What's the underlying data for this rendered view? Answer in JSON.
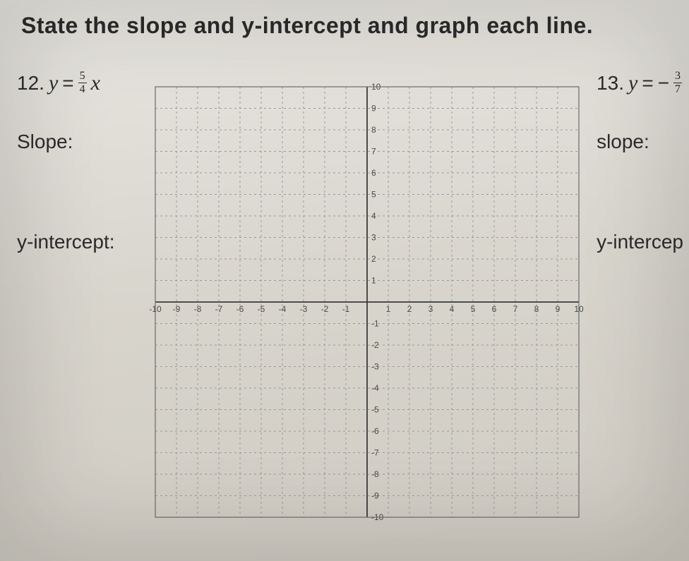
{
  "heading": "State the slope and y-intercept and graph each line.",
  "problems": {
    "left": {
      "number": "12.",
      "var_y": "y",
      "equals": "=",
      "frac_num": "5",
      "frac_den": "4",
      "var_x": "x",
      "slope_label": "Slope:",
      "yint_label": "y-intercept:"
    },
    "right": {
      "number": "13.",
      "var_y": "y",
      "equals": "=",
      "minus": "−",
      "frac_num": "3",
      "frac_den": "7",
      "slope_label": "slope:",
      "yint_label": "y-intercep"
    }
  },
  "graph": {
    "xmin": -10,
    "xmax": 10,
    "ymin": -10,
    "ymax": 10,
    "step": 1,
    "xlabels_top": [
      "10",
      "9",
      "8",
      "7",
      "6",
      "5",
      "4",
      "3",
      "2",
      "1"
    ],
    "xlabels_bottom": [
      "-1",
      "-2",
      "-3",
      "-4",
      "-5",
      "-6",
      "-7",
      "-8",
      "-9",
      "-10"
    ],
    "xaxis_neg": [
      "-10",
      "-9",
      "-8",
      "-7",
      "-6",
      "-5",
      "-4",
      "-3",
      "-2",
      "-1"
    ],
    "xaxis_pos": [
      "1",
      "2",
      "3",
      "4",
      "5",
      "6",
      "7",
      "8",
      "9",
      "10"
    ],
    "background_color": "transparent",
    "major_grid_color": "#6b6b6b",
    "minor_grid_color": "#9a9a9a",
    "axis_color": "#3a3a3a",
    "label_color": "#4a4a4a",
    "label_fontsize": 12,
    "dash": "3,4"
  }
}
